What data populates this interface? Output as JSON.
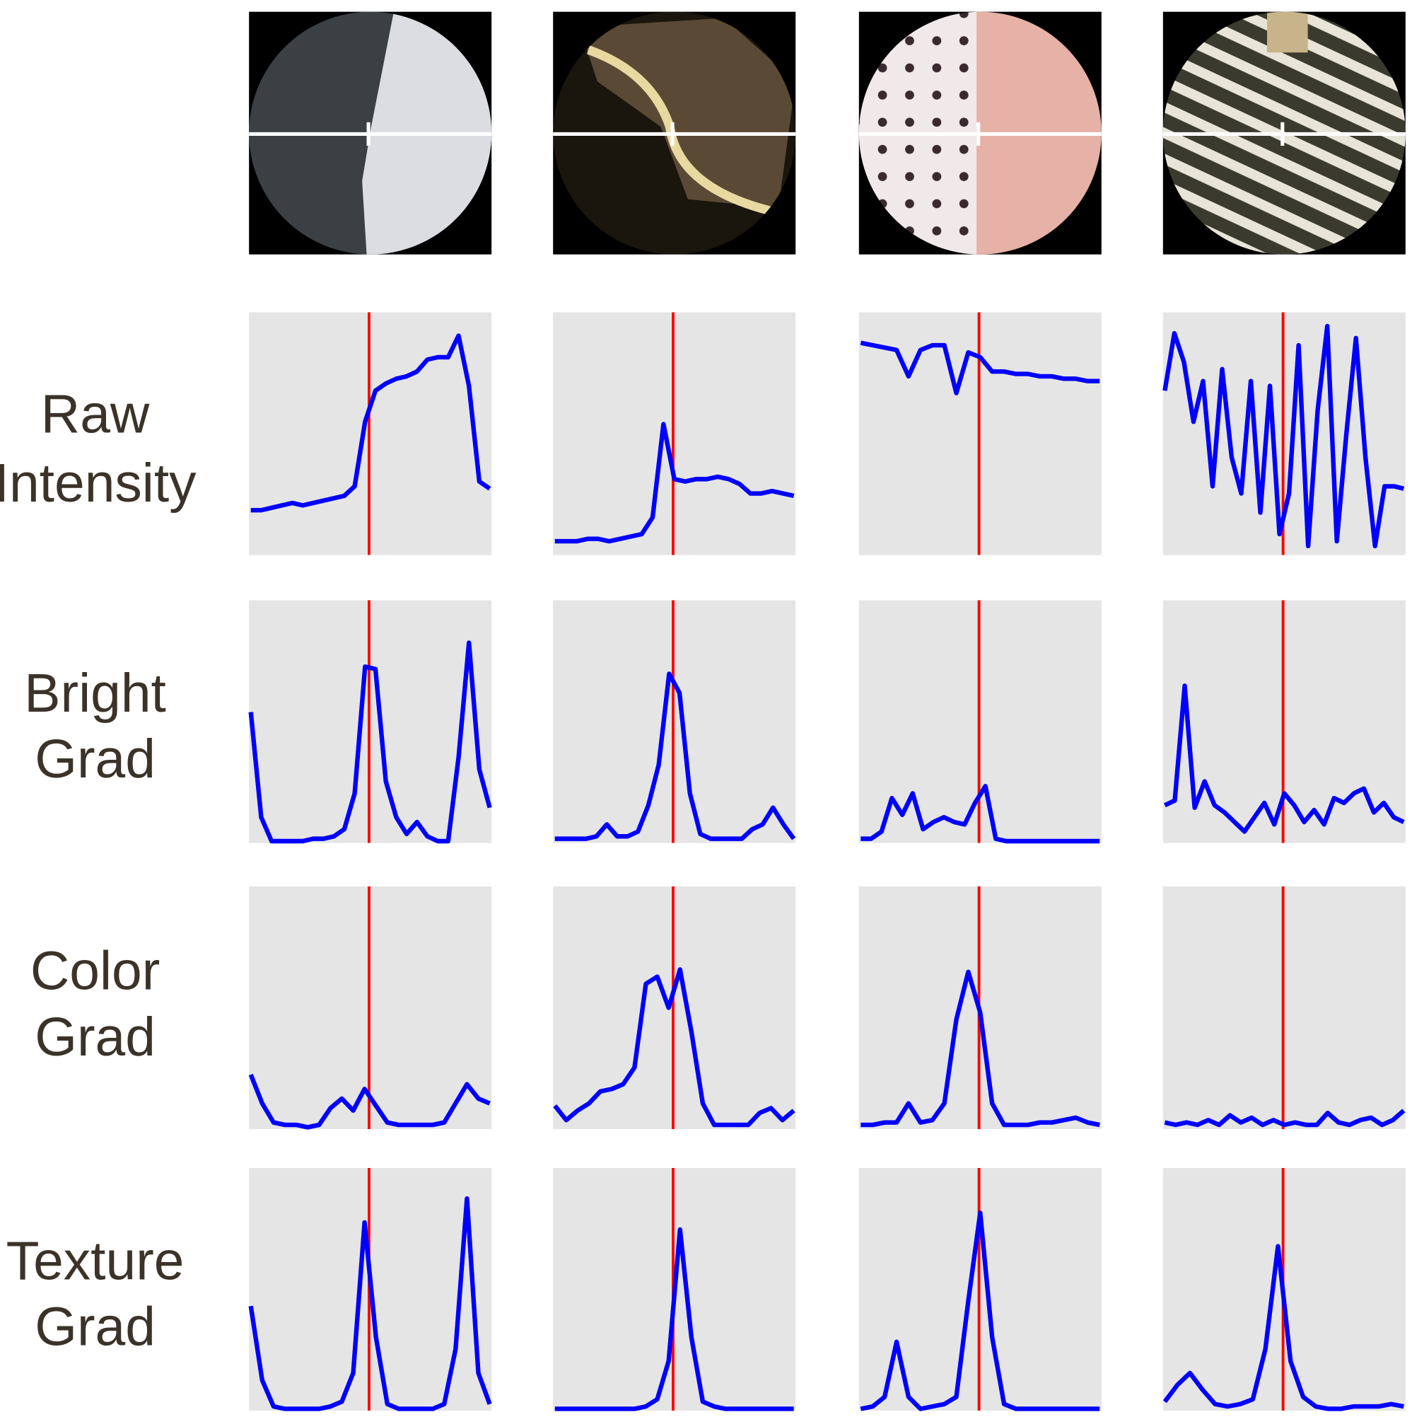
{
  "rows": [
    {
      "label": [
        "Raw",
        "Intensity"
      ],
      "panels": [
        {
          "values": [
            18,
            18,
            19,
            20,
            21,
            20,
            21,
            22,
            23,
            24,
            28,
            55,
            68,
            71,
            73,
            74,
            76,
            81,
            82,
            82,
            91,
            70,
            30,
            27
          ]
        },
        {
          "values": [
            5,
            5,
            5,
            6,
            6,
            5,
            6,
            7,
            8,
            15,
            54,
            31,
            30,
            31,
            31,
            32,
            31,
            29,
            25,
            25,
            26,
            25,
            24
          ]
        },
        {
          "values": [
            88,
            87,
            86,
            85,
            74,
            85,
            87,
            87,
            67,
            84,
            82,
            76,
            76,
            75,
            75,
            74,
            74,
            73,
            73,
            72,
            72
          ]
        },
        {
          "values": [
            68,
            92,
            80,
            55,
            72,
            28,
            77,
            40,
            25,
            72,
            17,
            70,
            8,
            25,
            87,
            3,
            60,
            95,
            5,
            50,
            90,
            40,
            3,
            28,
            28,
            27
          ]
        }
      ]
    },
    {
      "label": [
        "Bright",
        "Grad"
      ],
      "panels": [
        {
          "values": [
            54,
            10,
            0,
            0,
            0,
            0,
            1,
            1,
            2,
            5,
            20,
            73,
            72,
            25,
            10,
            3,
            8,
            2,
            0,
            0,
            35,
            83,
            30,
            14
          ]
        },
        {
          "values": [
            1,
            1,
            1,
            1,
            2,
            7,
            2,
            2,
            4,
            15,
            32,
            70,
            62,
            20,
            3,
            1,
            1,
            1,
            1,
            5,
            7,
            14,
            7,
            1
          ]
        },
        {
          "values": [
            1,
            1,
            4,
            18,
            11,
            20,
            5,
            8,
            10,
            8,
            7,
            16,
            23,
            1,
            0,
            0,
            0,
            0,
            0,
            0,
            0,
            0,
            0,
            0
          ]
        },
        {
          "values": [
            15,
            17,
            65,
            14,
            25,
            15,
            12,
            8,
            4,
            10,
            16,
            7,
            20,
            15,
            8,
            13,
            7,
            18,
            16,
            20,
            22,
            12,
            16,
            10,
            8
          ]
        }
      ]
    },
    {
      "label": [
        "Color",
        "Grad"
      ],
      "panels": [
        {
          "values": [
            22,
            10,
            2,
            1,
            1,
            0,
            1,
            8,
            12,
            7,
            16,
            9,
            2,
            1,
            1,
            1,
            1,
            2,
            10,
            18,
            12,
            10
          ]
        },
        {
          "values": [
            9,
            3,
            7,
            10,
            15,
            16,
            18,
            25,
            60,
            63,
            50,
            66,
            40,
            10,
            1,
            1,
            1,
            1,
            6,
            8,
            3,
            7
          ]
        },
        {
          "values": [
            1,
            1,
            2,
            2,
            10,
            2,
            3,
            10,
            45,
            65,
            48,
            10,
            1,
            1,
            1,
            2,
            2,
            3,
            4,
            2,
            1
          ]
        },
        {
          "values": [
            2,
            1,
            2,
            1,
            3,
            1,
            5,
            2,
            4,
            1,
            3,
            1,
            2,
            1,
            1,
            6,
            2,
            1,
            3,
            4,
            1,
            3,
            7
          ]
        }
      ]
    },
    {
      "label": [
        "Texture",
        "Grad"
      ],
      "panels": [
        {
          "values": [
            43,
            12,
            1,
            0,
            0,
            0,
            0,
            1,
            3,
            15,
            78,
            30,
            2,
            0,
            0,
            0,
            0,
            2,
            25,
            88,
            15,
            2
          ]
        },
        {
          "values": [
            0,
            0,
            0,
            0,
            0,
            0,
            0,
            0,
            1,
            4,
            20,
            75,
            30,
            3,
            1,
            0,
            0,
            0,
            0,
            0,
            0,
            0
          ]
        },
        {
          "values": [
            0,
            1,
            5,
            28,
            5,
            0,
            1,
            2,
            5,
            45,
            82,
            30,
            2,
            0,
            0,
            0,
            0,
            0,
            0,
            0,
            0
          ]
        },
        {
          "values": [
            3,
            10,
            15,
            8,
            2,
            1,
            2,
            4,
            25,
            68,
            20,
            5,
            1,
            0,
            0,
            1,
            1,
            1,
            2,
            1
          ]
        }
      ]
    }
  ]
}
